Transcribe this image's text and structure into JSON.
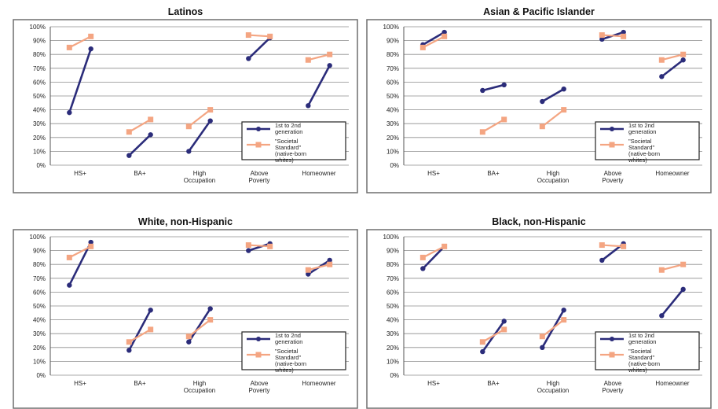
{
  "colors": {
    "generation": "#2b2c7a",
    "standard": "#f4a582",
    "grid": "#8c8c8c",
    "frame": "#6e6e6e",
    "text": "#222222"
  },
  "chart_data": [
    {
      "type": "line",
      "title": "Latinos",
      "categories": [
        "HS+",
        "BA+",
        "High Occupation",
        "Above Poverty",
        "Homeowner"
      ],
      "ylim": [
        0,
        100
      ],
      "yticks": [
        "0%",
        "10%",
        "20%",
        "30%",
        "40%",
        "50%",
        "60%",
        "70%",
        "80%",
        "90%",
        "100%"
      ],
      "grid": true,
      "legend": "bottom-right",
      "series": [
        {
          "name": "1st to 2nd generation",
          "start": [
            38,
            7,
            10,
            77,
            43
          ],
          "end": [
            84,
            22,
            32,
            92,
            72
          ]
        },
        {
          "name": "\"Societal Standard\" (native-born whites)",
          "start": [
            85,
            24,
            28,
            94,
            76
          ],
          "end": [
            93,
            33,
            40,
            93,
            80
          ]
        }
      ]
    },
    {
      "type": "line",
      "title": "Asian & Pacific Islander",
      "categories": [
        "HS+",
        "BA+",
        "High Occupation",
        "Above Poverty",
        "Homeowner"
      ],
      "ylim": [
        0,
        100
      ],
      "yticks": [
        "0%",
        "10%",
        "20%",
        "30%",
        "40%",
        "50%",
        "60%",
        "70%",
        "80%",
        "90%",
        "100%"
      ],
      "grid": true,
      "legend": "bottom-right",
      "series": [
        {
          "name": "1st to 2nd generation",
          "start": [
            87,
            54,
            46,
            91,
            64
          ],
          "end": [
            96,
            58,
            55,
            96,
            76
          ]
        },
        {
          "name": "\"Societal Standard\" (native-born whites)",
          "start": [
            85,
            24,
            28,
            94,
            76
          ],
          "end": [
            93,
            33,
            40,
            93,
            80
          ]
        }
      ]
    },
    {
      "type": "line",
      "title": "White, non-Hispanic",
      "categories": [
        "HS+",
        "BA+",
        "High Occupation",
        "Above Poverty",
        "Homeowner"
      ],
      "ylim": [
        0,
        100
      ],
      "yticks": [
        "0%",
        "10%",
        "20%",
        "30%",
        "40%",
        "50%",
        "60%",
        "70%",
        "80%",
        "90%",
        "100%"
      ],
      "grid": true,
      "legend": "bottom-right",
      "series": [
        {
          "name": "1st to 2nd generation",
          "start": [
            65,
            18,
            24,
            90,
            73
          ],
          "end": [
            96,
            47,
            48,
            95,
            83
          ]
        },
        {
          "name": "\"Societal Standard\" (native-born whites)",
          "start": [
            85,
            24,
            28,
            94,
            76
          ],
          "end": [
            93,
            33,
            40,
            93,
            80
          ]
        }
      ]
    },
    {
      "type": "line",
      "title": "Black, non-Hispanic",
      "categories": [
        "HS+",
        "BA+",
        "High Occupation",
        "Above Poverty",
        "Homeowner"
      ],
      "ylim": [
        0,
        100
      ],
      "yticks": [
        "0%",
        "10%",
        "20%",
        "30%",
        "40%",
        "50%",
        "60%",
        "70%",
        "80%",
        "90%",
        "100%"
      ],
      "grid": true,
      "legend": "bottom-right",
      "series": [
        {
          "name": "1st to 2nd generation",
          "start": [
            77,
            17,
            20,
            83,
            43
          ],
          "end": [
            93,
            39,
            47,
            95,
            62
          ]
        },
        {
          "name": "\"Societal Standard\" (native-born whites)",
          "start": [
            85,
            24,
            28,
            94,
            76
          ],
          "end": [
            93,
            33,
            40,
            93,
            80
          ]
        }
      ]
    }
  ]
}
